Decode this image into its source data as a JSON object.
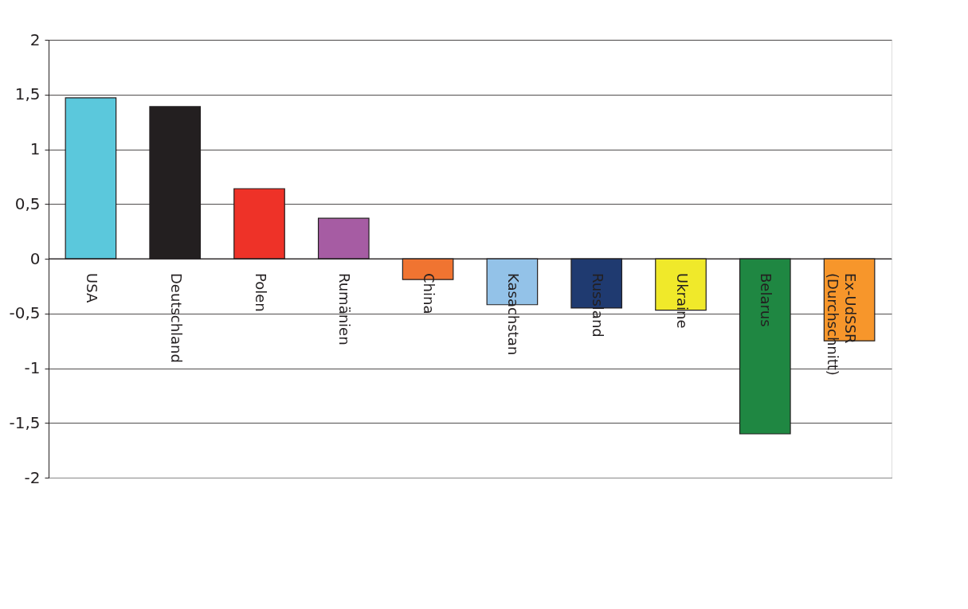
{
  "chart_data": {
    "type": "bar",
    "categories": [
      "USA",
      "Deutschland",
      "Polen",
      "Rumänien",
      "China",
      "Kasachstan",
      "Russland",
      "Ukraine",
      "Belarus",
      "Ex-UdSSR\n(Durchschnitt)"
    ],
    "values": [
      1.47,
      1.39,
      0.64,
      0.37,
      -0.19,
      -0.42,
      -0.45,
      -0.47,
      -1.6,
      -0.75
    ],
    "colors": [
      "#5bc8dc",
      "#231f20",
      "#ee3228",
      "#a65ca3",
      "#f07431",
      "#93c2e8",
      "#1f3a70",
      "#f0e92a",
      "#1f8742",
      "#f7962b"
    ],
    "ylim": [
      -2,
      2
    ],
    "yticks": [
      {
        "value": -2,
        "label": "-2"
      },
      {
        "value": -1.5,
        "label": "-1,5"
      },
      {
        "value": -1,
        "label": "-1"
      },
      {
        "value": -0.5,
        "label": "-0,5"
      },
      0,
      {
        "value": 0.5,
        "label": "0,5"
      },
      1,
      {
        "value": 1.5,
        "label": "1,5"
      },
      2
    ],
    "grid": "y",
    "legend": false
  }
}
